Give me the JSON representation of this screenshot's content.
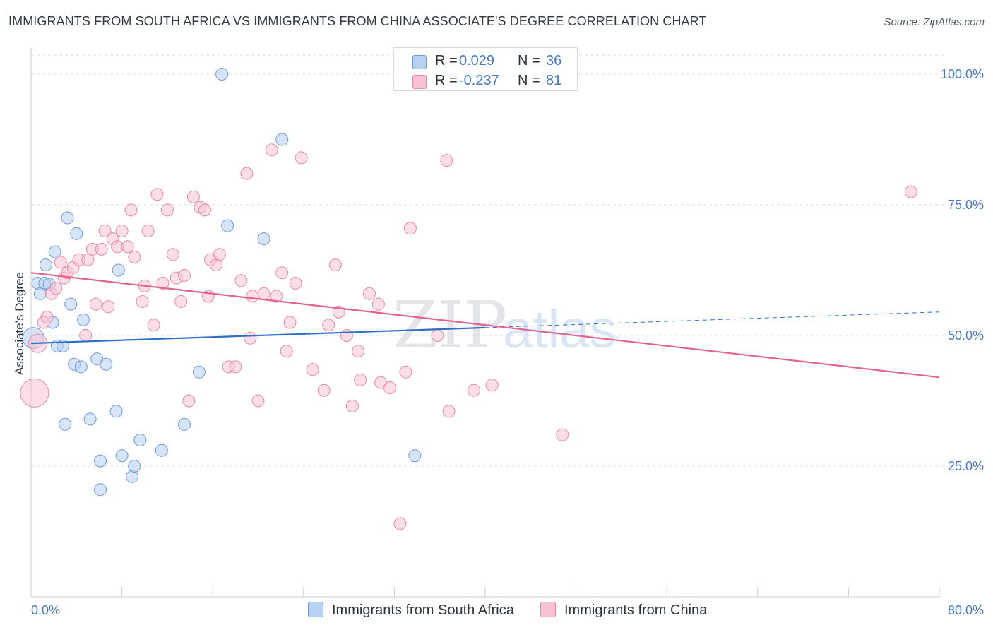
{
  "title": "IMMIGRANTS FROM SOUTH AFRICA VS IMMIGRANTS FROM CHINA ASSOCIATE'S DEGREE CORRELATION CHART",
  "source": "Source: ZipAtlas.com",
  "watermark": {
    "zip": "ZIP",
    "atlas": "atlas"
  },
  "colors": {
    "blue_fill": "#b8d0f2",
    "blue_stroke": "#6f9bd8",
    "blue_line": "#2f6fc6",
    "pink_fill": "#f8c2d3",
    "pink_stroke": "#e88aaa",
    "pink_line": "#e2638f",
    "tick_text": "#4a78c4",
    "grid": "#dcdfe4"
  },
  "legend": {
    "rows": [
      {
        "r_label": "R =",
        "r_value": "0.029",
        "n_label": "N =",
        "n_value": "36"
      },
      {
        "r_label": "R =",
        "r_value": "-0.237",
        "n_label": "N =",
        "n_value": "81"
      }
    ]
  },
  "bottom_legend": {
    "series1": "Immigrants from South Africa",
    "series2": "Immigrants from China"
  },
  "chart_data": {
    "type": "scatter",
    "ylabel": "Associate's Degree",
    "xlim": [
      0,
      80
    ],
    "ylim": [
      0,
      105
    ],
    "y_ticks": [
      {
        "value": 25,
        "label": "25.0%"
      },
      {
        "value": 50,
        "label": "50.0%"
      },
      {
        "value": 75,
        "label": "75.0%"
      },
      {
        "value": 100,
        "label": "100.0%"
      }
    ],
    "x_ticks": [
      {
        "value": 0,
        "label": "0.0%"
      },
      {
        "value": 80,
        "label": "80.0%"
      }
    ],
    "grid": true,
    "legend_position": "top-center",
    "series": [
      {
        "name": "Immigrants from South Africa",
        "color": "blue",
        "points": [
          [
            0.2,
            49.5
          ],
          [
            0.6,
            60.0
          ],
          [
            0.8,
            58.0
          ],
          [
            1.2,
            60.0
          ],
          [
            1.3,
            63.5
          ],
          [
            1.6,
            59.8
          ],
          [
            1.9,
            52.5
          ],
          [
            2.1,
            66.0
          ],
          [
            2.3,
            48.0
          ],
          [
            2.8,
            48.0
          ],
          [
            3.0,
            33.0
          ],
          [
            3.2,
            72.5
          ],
          [
            3.5,
            56.0
          ],
          [
            3.8,
            44.5
          ],
          [
            4.0,
            69.5
          ],
          [
            4.4,
            44.0
          ],
          [
            4.6,
            53.0
          ],
          [
            5.2,
            34.0
          ],
          [
            5.8,
            45.5
          ],
          [
            6.1,
            26.0
          ],
          [
            6.1,
            20.5
          ],
          [
            6.6,
            44.5
          ],
          [
            7.5,
            35.5
          ],
          [
            7.7,
            62.5
          ],
          [
            8.0,
            27.0
          ],
          [
            8.9,
            23.0
          ],
          [
            9.1,
            25.0
          ],
          [
            9.6,
            30.0
          ],
          [
            11.5,
            28.0
          ],
          [
            13.5,
            33.0
          ],
          [
            14.8,
            43.0
          ],
          [
            16.8,
            100.0
          ],
          [
            17.3,
            71.0
          ],
          [
            20.5,
            68.5
          ],
          [
            22.1,
            87.5
          ],
          [
            33.8,
            27.0
          ]
        ],
        "trend": {
          "x": [
            0,
            40
          ],
          "y": [
            48.5,
            51.5
          ]
        },
        "trend_extension": {
          "x": [
            40,
            80
          ],
          "y": [
            51.5,
            54.5
          ]
        }
      },
      {
        "name": "Immigrants from China",
        "color": "pink",
        "points": [
          [
            0.3,
            39.0
          ],
          [
            0.6,
            48.5
          ],
          [
            1.1,
            52.5
          ],
          [
            1.4,
            53.5
          ],
          [
            1.8,
            58.0
          ],
          [
            2.2,
            59.0
          ],
          [
            2.6,
            64.0
          ],
          [
            2.9,
            61.0
          ],
          [
            3.2,
            62.0
          ],
          [
            3.7,
            63.0
          ],
          [
            4.2,
            64.5
          ],
          [
            4.8,
            50.0
          ],
          [
            5.0,
            64.5
          ],
          [
            5.4,
            66.5
          ],
          [
            5.7,
            56.0
          ],
          [
            6.2,
            66.5
          ],
          [
            6.5,
            70.0
          ],
          [
            6.8,
            55.5
          ],
          [
            7.2,
            68.5
          ],
          [
            7.6,
            67.0
          ],
          [
            8.0,
            70.0
          ],
          [
            8.5,
            67.0
          ],
          [
            8.8,
            74.0
          ],
          [
            9.1,
            65.0
          ],
          [
            9.8,
            56.5
          ],
          [
            10.0,
            59.5
          ],
          [
            10.3,
            70.0
          ],
          [
            10.8,
            52.0
          ],
          [
            11.1,
            77.0
          ],
          [
            11.6,
            60.0
          ],
          [
            12.0,
            74.0
          ],
          [
            12.5,
            65.5
          ],
          [
            12.8,
            61.0
          ],
          [
            13.2,
            56.5
          ],
          [
            13.5,
            61.5
          ],
          [
            13.9,
            37.5
          ],
          [
            14.3,
            76.5
          ],
          [
            14.9,
            74.5
          ],
          [
            15.3,
            74.0
          ],
          [
            15.6,
            57.5
          ],
          [
            15.8,
            64.5
          ],
          [
            16.3,
            63.5
          ],
          [
            16.6,
            65.5
          ],
          [
            17.4,
            44.0
          ],
          [
            18.0,
            44.0
          ],
          [
            18.5,
            60.5
          ],
          [
            19.0,
            81.0
          ],
          [
            19.3,
            49.5
          ],
          [
            19.5,
            57.5
          ],
          [
            20.0,
            37.5
          ],
          [
            20.5,
            58.0
          ],
          [
            21.2,
            85.5
          ],
          [
            21.6,
            57.5
          ],
          [
            22.1,
            62.0
          ],
          [
            22.5,
            47.0
          ],
          [
            22.8,
            52.5
          ],
          [
            23.3,
            60.0
          ],
          [
            23.8,
            84.0
          ],
          [
            24.8,
            43.5
          ],
          [
            25.8,
            39.5
          ],
          [
            26.2,
            52.0
          ],
          [
            26.8,
            63.5
          ],
          [
            27.1,
            54.5
          ],
          [
            27.8,
            50.0
          ],
          [
            28.3,
            36.5
          ],
          [
            28.8,
            47.0
          ],
          [
            29.0,
            41.5
          ],
          [
            29.8,
            58.0
          ],
          [
            30.6,
            56.0
          ],
          [
            30.8,
            41.0
          ],
          [
            31.6,
            40.0
          ],
          [
            32.5,
            14.0
          ],
          [
            33.0,
            43.0
          ],
          [
            33.4,
            70.5
          ],
          [
            35.8,
            50.0
          ],
          [
            36.6,
            83.5
          ],
          [
            36.8,
            35.5
          ],
          [
            39.0,
            39.5
          ],
          [
            40.6,
            40.5
          ],
          [
            46.8,
            31.0
          ],
          [
            77.5,
            77.5
          ]
        ],
        "trend": {
          "x": [
            0,
            80
          ],
          "y": [
            62.0,
            42.0
          ]
        }
      }
    ]
  }
}
